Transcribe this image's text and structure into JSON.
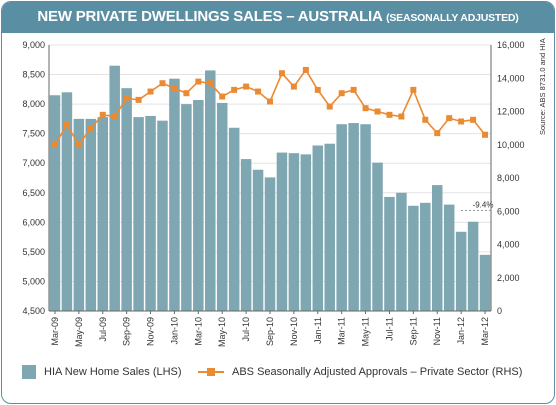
{
  "header": {
    "title": "NEW PRIVATE DWELLINGS SALES – AUSTRALIA",
    "subtitle": "(SEASONALLY ADJUSTED)"
  },
  "source": "Source: ABS 8731.0 and HIA",
  "colors": {
    "frame": "#5a8fa3",
    "bars": "#7fa7b2",
    "line": "#ea8a33",
    "grid": "#e3e3e3"
  },
  "legend": {
    "bars": "HIA New Home Sales (LHS)",
    "line": "ABS Seasonally Adjusted Approvals – Private Sector (RHS)"
  },
  "chart_data": {
    "type": "bar",
    "grid": true,
    "legend_position": "bottom",
    "categories": [
      "Mar-09",
      "Apr-09",
      "May-09",
      "Jun-09",
      "Jul-09",
      "Aug-09",
      "Sep-09",
      "Oct-09",
      "Nov-09",
      "Dec-09",
      "Jan-10",
      "Feb-10",
      "Mar-10",
      "Apr-10",
      "May-10",
      "Jun-10",
      "Jul-10",
      "Aug-10",
      "Sep-10",
      "Oct-10",
      "Nov-10",
      "Dec-10",
      "Jan-11",
      "Feb-11",
      "Mar-11",
      "Apr-11",
      "May-11",
      "Jun-11",
      "Jul-11",
      "Aug-11",
      "Sep-11",
      "Oct-11",
      "Nov-11",
      "Dec-11",
      "Jan-12",
      "Feb-12",
      "Mar-12"
    ],
    "x_tick_labels": [
      "Mar-09",
      "May-09",
      "Jul-09",
      "Sep-09",
      "Nov-09",
      "Jan-10",
      "Mar-10",
      "May-10",
      "Jul-10",
      "Sep-10",
      "Nov-10",
      "Jan-11",
      "Mar-11",
      "May-11",
      "Jul-11",
      "Sep-11",
      "Nov-11",
      "Jan-12",
      "Mar-12"
    ],
    "y_left": {
      "min": 4500,
      "max": 9000,
      "ticks": [
        "4,500",
        "5,000",
        "5,500",
        "6,000",
        "6,500",
        "7,000",
        "7,500",
        "8,000",
        "8,500",
        "9,000"
      ]
    },
    "y_right": {
      "min": 0,
      "max": 16000,
      "ticks": [
        "0",
        "2,000",
        "4,000",
        "6,000",
        "8,000",
        "10,000",
        "12,000",
        "14,000",
        "16,000"
      ]
    },
    "series": [
      {
        "name": "HIA New Home Sales (LHS)",
        "type": "bar",
        "axis": "left",
        "values": [
          8150,
          8200,
          7750,
          7750,
          7780,
          8650,
          8270,
          7780,
          7800,
          7720,
          8430,
          8000,
          8070,
          8570,
          8020,
          7600,
          7070,
          6890,
          6760,
          7180,
          7170,
          7150,
          7300,
          7330,
          7660,
          7680,
          7660,
          7010,
          6430,
          6500,
          6280,
          6330,
          6630,
          6300,
          5840,
          6010,
          5450
        ]
      },
      {
        "name": "ABS Seasonally Adjusted Approvals – Private Sector (RHS)",
        "type": "line",
        "axis": "right",
        "values": [
          10000,
          11200,
          10000,
          11000,
          11800,
          11700,
          12800,
          12700,
          13200,
          13700,
          13400,
          13100,
          13800,
          13700,
          12900,
          13300,
          13500,
          13200,
          12600,
          14300,
          13500,
          14500,
          13300,
          12300,
          13100,
          13300,
          12200,
          12000,
          11800,
          11700,
          13300,
          11500,
          10700,
          11600,
          11400,
          11500,
          10600
        ]
      }
    ],
    "annotations": [
      {
        "text": "-9.4%",
        "category": "Mar-12"
      }
    ]
  }
}
